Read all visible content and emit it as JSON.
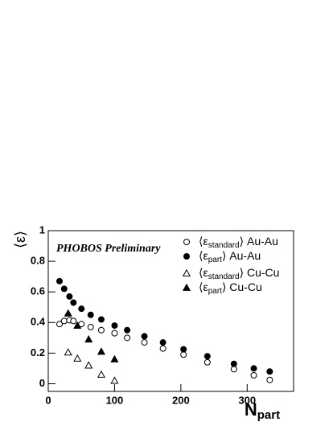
{
  "chart_data": {
    "type": "scatter",
    "annotation": "PHOBOS Preliminary",
    "x_label": "Npart",
    "y_label": "⟨ε⟩",
    "xlim": [
      0,
      370
    ],
    "ylim": [
      -0.05,
      1
    ],
    "xticks": [
      0,
      100,
      200,
      300
    ],
    "yticks": [
      0,
      0.2,
      0.4,
      0.6,
      0.8,
      1
    ],
    "series": [
      {
        "name": "⟨εstandard⟩ Au-Au",
        "color": "#000000",
        "marker": "circle-open",
        "x": [
          17,
          24,
          32,
          38,
          50,
          64,
          80,
          100,
          119,
          145,
          173,
          204,
          240,
          280,
          310,
          334
        ],
        "values": [
          0.39,
          0.41,
          0.415,
          0.41,
          0.39,
          0.37,
          0.35,
          0.33,
          0.3,
          0.27,
          0.23,
          0.19,
          0.14,
          0.095,
          0.055,
          0.025
        ]
      },
      {
        "name": "⟨εpart⟩ Au-Au",
        "color": "#000000",
        "marker": "circle-filled",
        "x": [
          17,
          24,
          32,
          38,
          50,
          64,
          80,
          100,
          119,
          145,
          173,
          204,
          240,
          280,
          310,
          334
        ],
        "values": [
          0.67,
          0.62,
          0.57,
          0.53,
          0.49,
          0.45,
          0.42,
          0.38,
          0.35,
          0.31,
          0.27,
          0.225,
          0.18,
          0.13,
          0.1,
          0.08
        ]
      },
      {
        "name": "⟨εstandard⟩ Cu-Cu",
        "color": "#000000",
        "marker": "triangle-open",
        "x": [
          30,
          44,
          61,
          80,
          100
        ],
        "values": [
          0.205,
          0.165,
          0.12,
          0.06,
          0.02
        ]
      },
      {
        "name": "⟨εpart⟩ Cu-Cu",
        "color": "#000000",
        "marker": "triangle-filled",
        "x": [
          30,
          44,
          61,
          80,
          100
        ],
        "values": [
          0.46,
          0.38,
          0.29,
          0.21,
          0.16
        ]
      }
    ]
  }
}
